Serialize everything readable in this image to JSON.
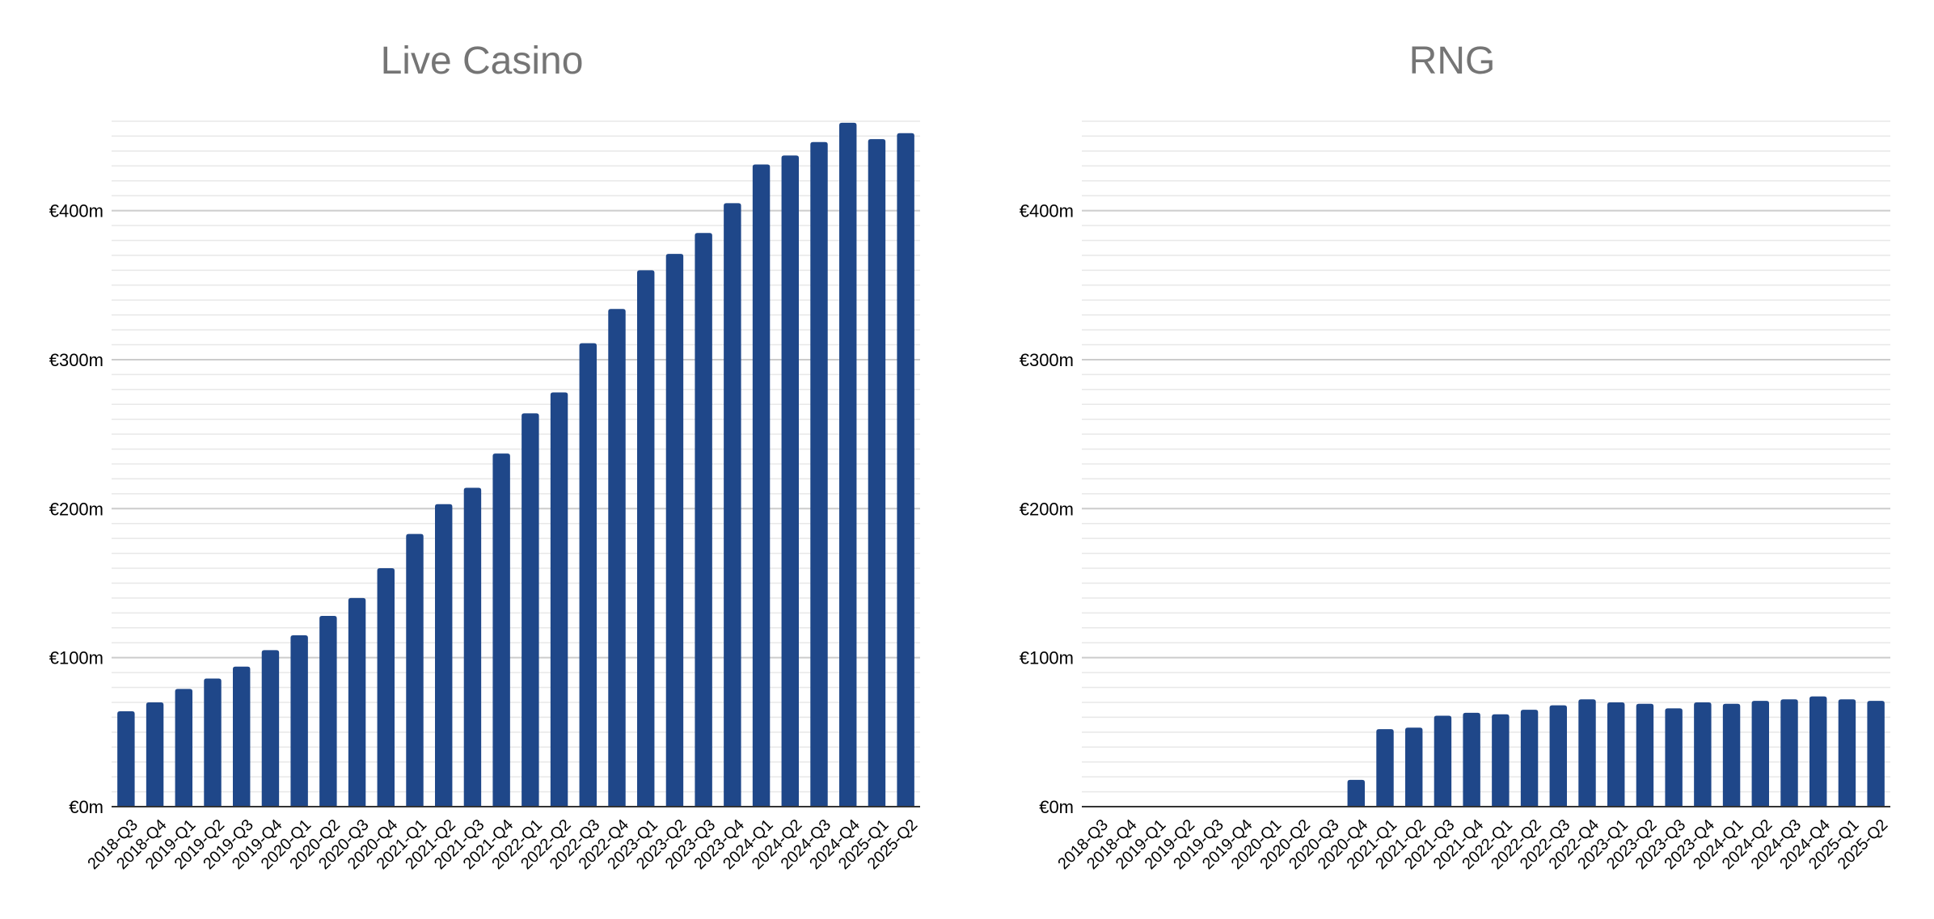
{
  "colors": {
    "bar": "#1f4789",
    "grid_major": "#cccccc",
    "grid_minor": "#e8e8e8",
    "axis": "#333333",
    "title": "#757575"
  },
  "chart_data": [
    {
      "type": "bar",
      "title": "Live Casino",
      "xlabel": "",
      "ylabel": "",
      "ylim": [
        0,
        460
      ],
      "yticks": [
        0,
        100,
        200,
        300,
        400
      ],
      "ytick_labels": [
        "€0m",
        "€100m",
        "€200m",
        "€300m",
        "€400m"
      ],
      "grid": true,
      "categories": [
        "2018-Q3",
        "2018-Q4",
        "2019-Q1",
        "2019-Q2",
        "2019-Q3",
        "2019-Q4",
        "2020-Q1",
        "2020-Q2",
        "2020-Q3",
        "2020-Q4",
        "2021-Q1",
        "2021-Q2",
        "2021-Q3",
        "2021-Q4",
        "2022-Q1",
        "2022-Q2",
        "2022-Q3",
        "2022-Q4",
        "2023-Q1",
        "2023-Q2",
        "2023-Q3",
        "2023-Q4",
        "2024-Q1",
        "2024-Q2",
        "2024-Q3",
        "2024-Q4",
        "2025-Q1",
        "2025-Q2"
      ],
      "values": [
        64,
        70,
        79,
        86,
        94,
        105,
        115,
        128,
        140,
        160,
        183,
        203,
        214,
        237,
        264,
        278,
        311,
        334,
        360,
        371,
        385,
        405,
        431,
        437,
        446,
        459,
        448,
        452
      ]
    },
    {
      "type": "bar",
      "title": "RNG",
      "xlabel": "",
      "ylabel": "",
      "ylim": [
        0,
        460
      ],
      "yticks": [
        0,
        100,
        200,
        300,
        400
      ],
      "ytick_labels": [
        "€0m",
        "€100m",
        "€200m",
        "€300m",
        "€400m"
      ],
      "grid": true,
      "categories": [
        "2018-Q3",
        "2018-Q4",
        "2019-Q1",
        "2019-Q2",
        "2019-Q3",
        "2019-Q4",
        "2020-Q1",
        "2020-Q2",
        "2020-Q3",
        "2020-Q4",
        "2021-Q1",
        "2021-Q2",
        "2021-Q3",
        "2021-Q4",
        "2022-Q1",
        "2022-Q2",
        "2022-Q3",
        "2022-Q4",
        "2023-Q1",
        "2023-Q2",
        "2023-Q3",
        "2023-Q4",
        "2024-Q1",
        "2024-Q2",
        "2024-Q3",
        "2024-Q4",
        "2025-Q1",
        "2025-Q2"
      ],
      "values": [
        0,
        0,
        0,
        0,
        0,
        0,
        0,
        0,
        0,
        18,
        52,
        53,
        61,
        63,
        62,
        65,
        68,
        72,
        70,
        69,
        66,
        70,
        69,
        71,
        72,
        74,
        72,
        71
      ]
    }
  ]
}
